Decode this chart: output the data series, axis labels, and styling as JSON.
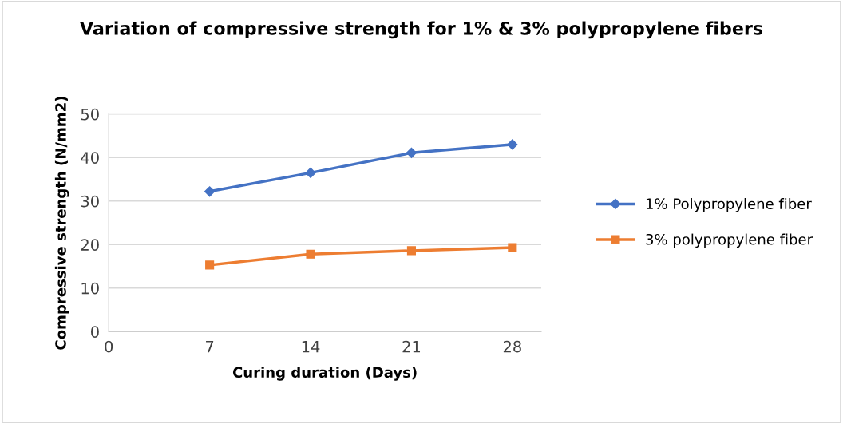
{
  "chart_data": {
    "type": "line",
    "title": "Variation of compressive strength for 1% & 3% polypropylene fibers",
    "xlabel": "Curing duration (Days)",
    "ylabel": "Compressive strength (N/mm2)",
    "x": [
      7,
      14,
      21,
      28
    ],
    "series": [
      {
        "name": "1% Polypropylene fiber",
        "color": "#4472c4",
        "values": [
          32.2,
          36.5,
          41.1,
          43.0
        ],
        "marker": "diamond"
      },
      {
        "name": "3% polypropylene fiber",
        "color": "#ed7d31",
        "values": [
          15.3,
          17.8,
          18.6,
          19.3
        ],
        "marker": "square"
      }
    ],
    "xlim": [
      0,
      30
    ],
    "xticks": [
      0,
      7,
      14,
      21,
      28
    ],
    "ylim": [
      0,
      50
    ],
    "yticks": [
      0,
      10,
      20,
      30,
      40,
      50
    ],
    "grid": "y",
    "legend": "right",
    "line_style": "solid"
  }
}
